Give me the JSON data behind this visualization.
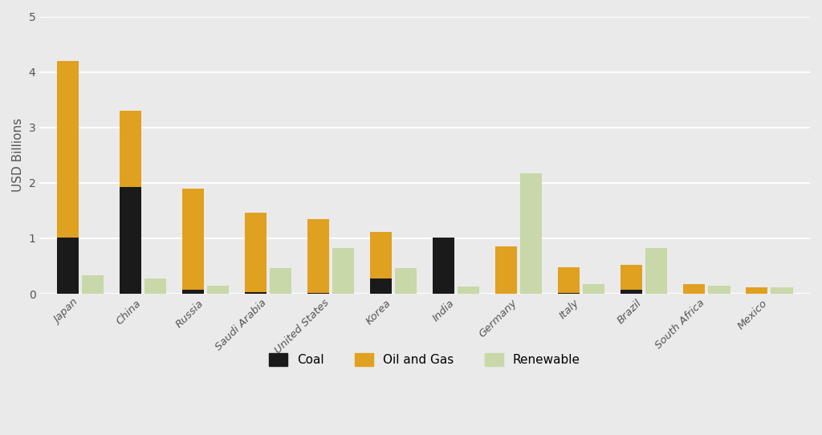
{
  "countries": [
    "Japan",
    "China",
    "Russia",
    "Saudi Arabia",
    "United States",
    "Korea",
    "India",
    "Germany",
    "Italy",
    "Brazil",
    "South Africa",
    "Mexico"
  ],
  "coal": [
    1.02,
    1.93,
    0.08,
    0.03,
    0.02,
    0.27,
    1.01,
    0.0,
    0.02,
    0.08,
    0.0,
    0.0
  ],
  "oil_and_gas": [
    3.18,
    1.37,
    1.82,
    1.43,
    1.33,
    0.85,
    0.0,
    0.85,
    0.46,
    0.44,
    0.17,
    0.11
  ],
  "renewable": [
    0.33,
    0.27,
    0.15,
    0.47,
    0.82,
    0.47,
    0.13,
    2.17,
    0.17,
    0.83,
    0.15,
    0.11
  ],
  "coal_color": "#1a1a1a",
  "oil_gas_color": "#E0A020",
  "renewable_color": "#C8D8A8",
  "background_color": "#EAEAEA",
  "grid_color": "#FFFFFF",
  "ylabel": "USD Billions",
  "ylim": [
    0,
    5
  ],
  "yticks": [
    0,
    1,
    2,
    3,
    4,
    5
  ],
  "legend_labels": [
    "Coal",
    "Oil and Gas",
    "Renewable"
  ],
  "bar_width": 0.35,
  "bar_gap": 0.05
}
